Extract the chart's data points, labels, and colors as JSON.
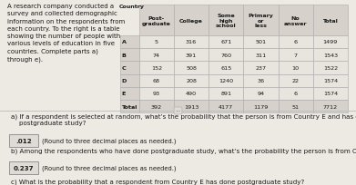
{
  "title_text": "A research company conducted a\nsurvey and collected demographic\ninformation on the respondents from\neach country. To the right is a table\nshowing the number of people with\nvarious levels of education in five\ncountries. Complete parts a)\nthrough e).",
  "col_labels": [
    "Post-\ngraduate",
    "College",
    "Some\nhigh\nschool",
    "Primary\nor\nless",
    "No\nanswer",
    "Total"
  ],
  "row_labels": [
    "A",
    "B",
    "C",
    "D",
    "E",
    "Total"
  ],
  "cell_data": [
    [
      "5",
      "316",
      "671",
      "501",
      "6",
      "1499"
    ],
    [
      "74",
      "391",
      "760",
      "311",
      "7",
      "1543"
    ],
    [
      "152",
      "508",
      "615",
      "237",
      "10",
      "1522"
    ],
    [
      "68",
      "208",
      "1240",
      "36",
      "22",
      "1574"
    ],
    [
      "93",
      "490",
      "891",
      "94",
      "6",
      "1574"
    ],
    [
      "392",
      "1913",
      "4177",
      "1179",
      "51",
      "7712"
    ]
  ],
  "qa_a": "a) If a respondent is selected at random, what’s the probability that the person is from Country E and has done\n    postgraduate study?",
  "qa_a_ans": ".012",
  "qa_a_round": "(Round to three decimal places as needed.)",
  "qa_b": "b) Among the respondents who have done postgraduate study, what’s the probability the person is from Country E?",
  "qa_b_ans": "0.237",
  "qa_b_round": "(Round to three decimal places as needed.)",
  "qa_c": "c) What is the probability that a respondent from Country E has done postgraduate study?",
  "bg_color": "#ede9e3",
  "table_header_color": "#d6d1cb",
  "table_cell_color": "#e8e4de",
  "table_total_color": "#d6d1cb",
  "border_color": "#aaaaaa",
  "text_color": "#1a1a1a",
  "ans_box_color": "#dedad4"
}
